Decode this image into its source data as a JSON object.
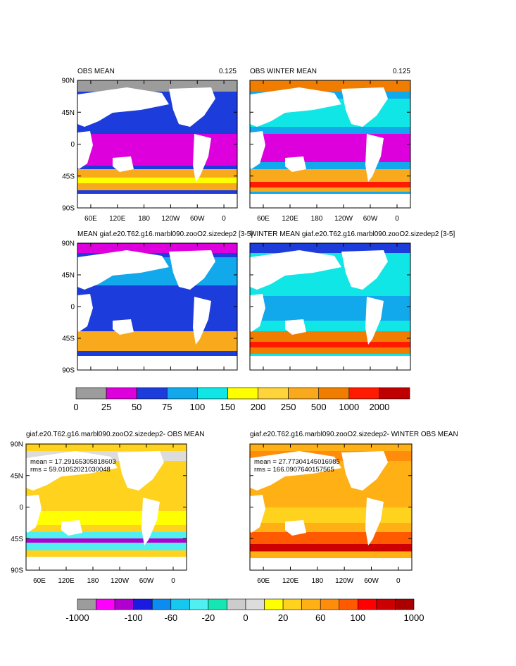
{
  "chart_data": [
    {
      "type": "heatmap",
      "title": "OBS MEAN",
      "value_label": "0.125",
      "y_ticks": [
        "90N",
        "45N",
        "0",
        "45S",
        "90S"
      ],
      "x_ticks": [
        "60E",
        "120E",
        "180",
        "120W",
        "60W",
        "0"
      ],
      "colorbar": "cb1"
    },
    {
      "type": "heatmap",
      "title": "OBS WINTER MEAN",
      "value_label": "0.125",
      "y_ticks": [],
      "x_ticks": [
        "60E",
        "120E",
        "180",
        "120W",
        "60W",
        "0"
      ],
      "colorbar": "cb1"
    },
    {
      "type": "heatmap",
      "title": "MEAN giaf.e20.T62.g16.marbl090.zooO2.sizedep2 [3-5]",
      "y_ticks": [
        "90N",
        "45N",
        "0",
        "45S",
        "90S"
      ],
      "x_ticks": [],
      "colorbar": "cb1"
    },
    {
      "type": "heatmap",
      "title": "WINTER MEAN giaf.e20.T62.g16.marbl090.zooO2.sizedep2 [3-5]",
      "y_ticks": [],
      "x_ticks": [],
      "colorbar": "cb1"
    },
    {
      "type": "heatmap",
      "title": "giaf.e20.T62.g16.marbl090.zooO2.sizedep2- OBS MEAN",
      "stats": [
        "mean = 17.29165305818603",
        "rms = 59.01052021030048"
      ],
      "y_ticks": [
        "90N",
        "45N",
        "0",
        "45S",
        "90S"
      ],
      "x_ticks": [
        "60E",
        "120E",
        "180",
        "120W",
        "60W",
        "0"
      ],
      "colorbar": "cb2"
    },
    {
      "type": "heatmap",
      "title": "giaf.e20.T62.g16.marbl090.zooO2.sizedep2- WINTER OBS MEAN",
      "stats": [
        "mean = 27.77304145016985",
        "rms = 166.0907640157565"
      ],
      "y_ticks": [],
      "x_ticks": [
        "60E",
        "120E",
        "180",
        "120W",
        "60W",
        "0"
      ],
      "colorbar": "cb2"
    }
  ],
  "colorbars": {
    "cb1": {
      "colors": [
        "#9c9c9c",
        "#dd00dd",
        "#1c3cdc",
        "#12a8ec",
        "#10e6e6",
        "#ffff00",
        "#fed43a",
        "#f9a91c",
        "#f07d00",
        "#ff1a00",
        "#c00000"
      ],
      "labels": [
        "0",
        "25",
        "50",
        "75",
        "100",
        "150",
        "200",
        "250",
        "500",
        "1000",
        "2000"
      ]
    },
    "cb2": {
      "colors": [
        "#9c9c9c",
        "#ff00ff",
        "#b000d0",
        "#1a1ae0",
        "#0c8cf0",
        "#14c8f0",
        "#50f0f0",
        "#14e6b4",
        "#cccccc",
        "#dcdcdc",
        "#ffff00",
        "#ffd21e",
        "#ffb014",
        "#ff8c0a",
        "#ff5a00",
        "#ff0000",
        "#cc0000",
        "#aa0000"
      ],
      "labels": [
        "-1000",
        "-100",
        "-60",
        "-20",
        "0",
        "20",
        "60",
        "100",
        "1000"
      ]
    }
  }
}
